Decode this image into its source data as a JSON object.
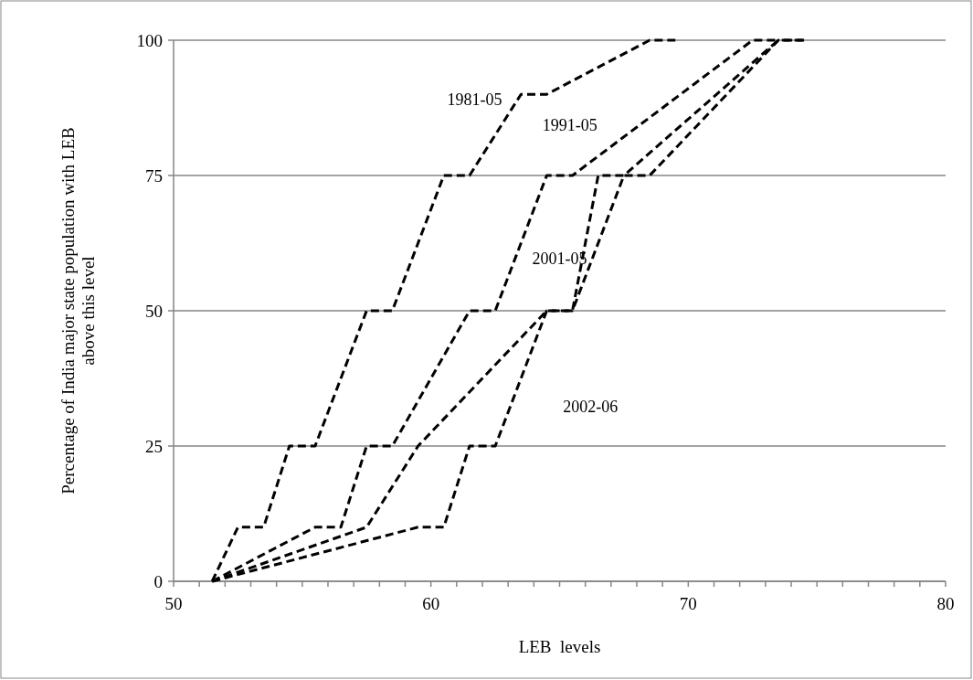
{
  "chart_data": {
    "type": "line",
    "xlabel": "LEB  levels",
    "ylabel": "Percentage of India major state population with LEB\nabove this level",
    "xlim": [
      50,
      80
    ],
    "xticks": [
      50,
      {
        "value": 51,
        "label": null
      },
      {
        "value": 52,
        "label": null
      },
      {
        "value": 53,
        "label": null
      },
      {
        "value": 54,
        "label": null
      },
      {
        "value": 55,
        "label": null
      },
      {
        "value": 56,
        "label": null
      },
      {
        "value": 57,
        "label": null
      },
      {
        "value": 58,
        "label": null
      },
      {
        "value": 59,
        "label": null
      },
      60,
      {
        "value": 61,
        "label": null
      },
      {
        "value": 62,
        "label": null
      },
      {
        "value": 63,
        "label": null
      },
      {
        "value": 64,
        "label": null
      },
      {
        "value": 65,
        "label": null
      },
      {
        "value": 66,
        "label": null
      },
      {
        "value": 67,
        "label": null
      },
      {
        "value": 68,
        "label": null
      },
      {
        "value": 69,
        "label": null
      },
      70,
      {
        "value": 71,
        "label": null
      },
      {
        "value": 72,
        "label": null
      },
      {
        "value": 73,
        "label": null
      },
      {
        "value": 74,
        "label": null
      },
      {
        "value": 75,
        "label": null
      },
      {
        "value": 76,
        "label": null
      },
      {
        "value": 77,
        "label": null
      },
      {
        "value": 78,
        "label": null
      },
      {
        "value": 79,
        "label": null
      },
      80
    ],
    "ylim": [
      0,
      100
    ],
    "yticks": [
      0,
      25,
      50,
      75,
      100
    ],
    "grid": "y",
    "line_style": "dashed",
    "marker": "none",
    "series": [
      {
        "name": "1981-05",
        "color": "#000000",
        "x": [
          51.5,
          52.5,
          53.5,
          54.5,
          55.5,
          57.5,
          58.5,
          60.5,
          61.5,
          63.5,
          64.5,
          68.5,
          69.5
        ],
        "values": [
          0,
          10,
          10,
          25,
          25,
          50,
          50,
          75,
          75,
          90,
          90,
          100,
          100
        ]
      },
      {
        "name": "1991-05",
        "color": "#000000",
        "x": [
          51.5,
          55.5,
          56.5,
          57.5,
          58.5,
          61.5,
          62.5,
          64.5,
          65.5,
          72.5,
          73.5
        ],
        "values": [
          0,
          10,
          10,
          25,
          25,
          50,
          50,
          75,
          75,
          100,
          100
        ]
      },
      {
        "name": "2001-05",
        "color": "#000000",
        "x": [
          51.5,
          57.5,
          59.5,
          64.5,
          65.5,
          66.5,
          67.5,
          73.5,
          74.5
        ],
        "values": [
          0,
          10,
          25,
          50,
          50,
          75,
          75,
          100,
          100
        ]
      },
      {
        "name": "2002-06",
        "color": "#000000",
        "x": [
          51.5,
          59.5,
          60.5,
          61.5,
          62.5,
          64.5,
          65.5,
          67.5,
          68.5,
          73.5,
          74.5
        ],
        "values": [
          0,
          10,
          10,
          25,
          25,
          50,
          50,
          75,
          75,
          100,
          100
        ]
      }
    ]
  }
}
